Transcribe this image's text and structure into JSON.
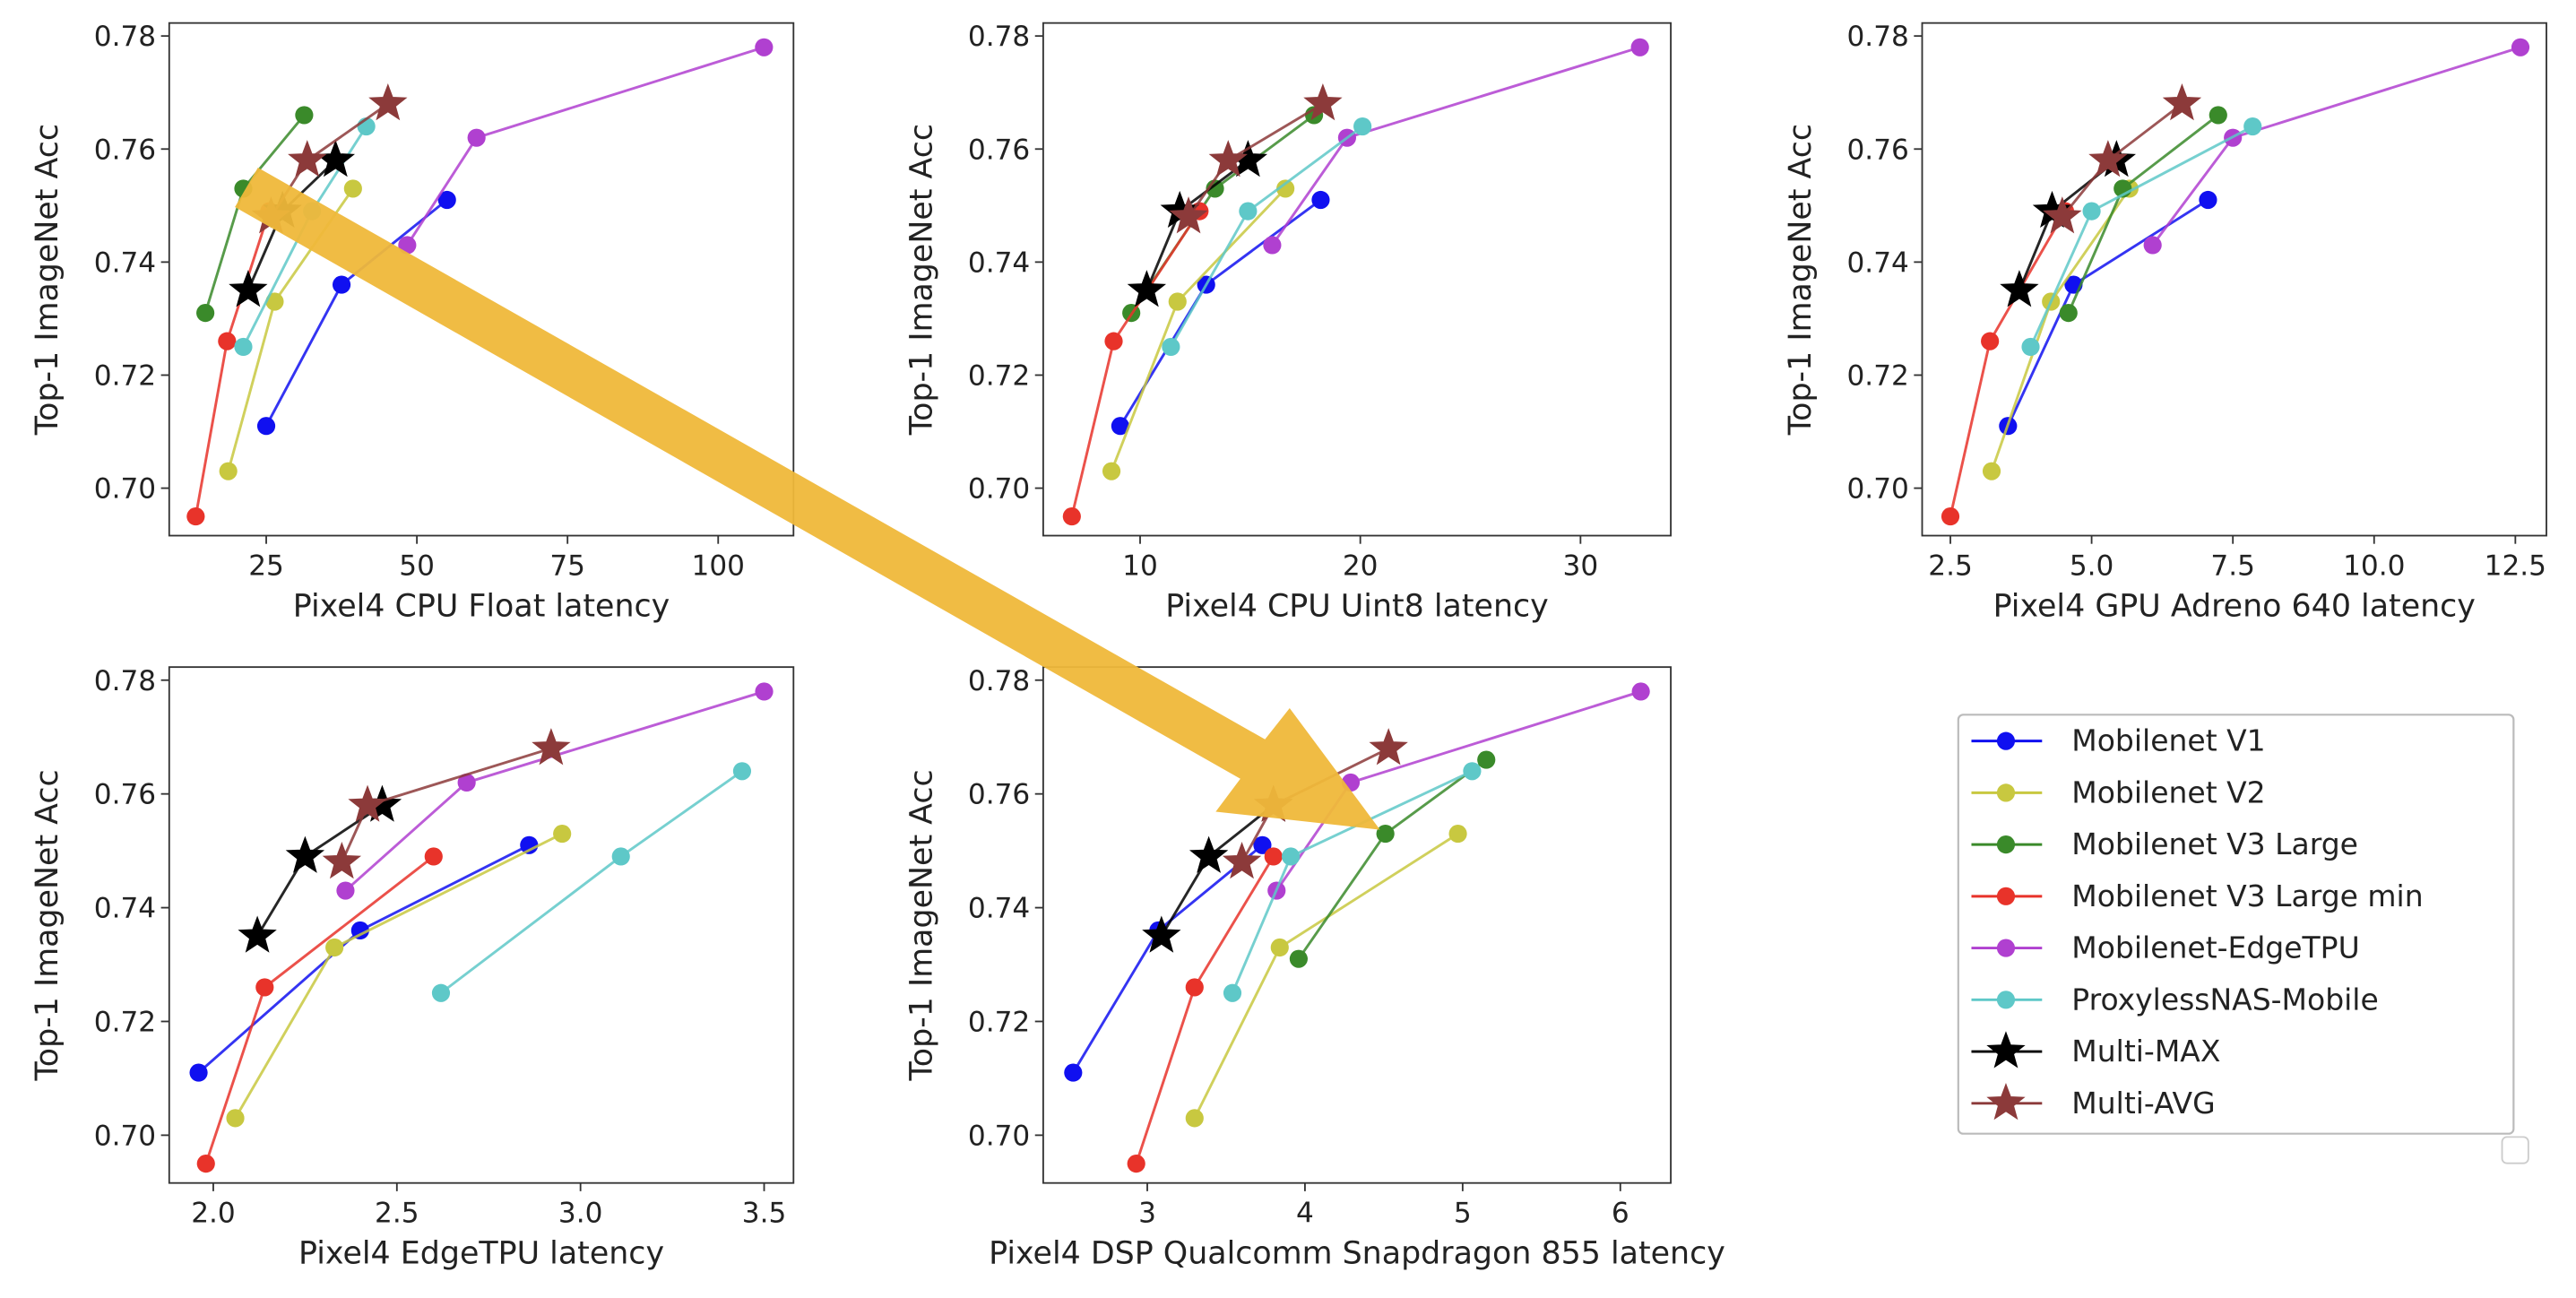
{
  "chart_data": [
    {
      "type": "line",
      "xlabel": "Pixel4 CPU Float latency",
      "ylabel": "Top-1 ImageNet Acc",
      "xlim": [
        8.9,
        112.5
      ],
      "ylim": [
        0.6916,
        0.7823
      ],
      "xticks": [
        25,
        50,
        75,
        100
      ],
      "yticks": [
        {
          "value": 0.7,
          "label": "0.70"
        },
        {
          "value": 0.72,
          "label": "0.72"
        },
        {
          "value": 0.74,
          "label": "0.74"
        },
        {
          "value": 0.76,
          "label": "0.76"
        },
        {
          "value": 0.78,
          "label": "0.78"
        }
      ],
      "series": [
        {
          "name": "Mobilenet V1",
          "color": "#1010f0",
          "marker": "o",
          "x": [
            25,
            37.5,
            55
          ],
          "values": [
            0.711,
            0.736,
            0.751
          ]
        },
        {
          "name": "Mobilenet V2",
          "color": "#c8c840",
          "marker": "o",
          "x": [
            18.7,
            26.4,
            39.4
          ],
          "values": [
            0.703,
            0.733,
            0.753
          ]
        },
        {
          "name": "Mobilenet V3 Large",
          "color": "#3a8a2a",
          "marker": "o",
          "x": [
            14.9,
            21.2,
            31.3
          ],
          "values": [
            0.731,
            0.753,
            0.766
          ]
        },
        {
          "name": "Mobilenet V3 Large min",
          "color": "#e8332a",
          "marker": "o",
          "x": [
            13.3,
            18.5,
            25.5
          ],
          "values": [
            0.695,
            0.726,
            0.749
          ]
        },
        {
          "name": "Mobilenet-EdgeTPU",
          "color": "#b040d0",
          "marker": "o",
          "x": [
            48.4,
            59.9,
            107.6
          ],
          "values": [
            0.743,
            0.762,
            0.778
          ]
        },
        {
          "name": "ProxylessNAS-Mobile",
          "color": "#5ec8c8",
          "marker": "o",
          "x": [
            21.2,
            32.6,
            41.6
          ],
          "values": [
            0.725,
            0.749,
            0.764
          ]
        },
        {
          "name": "Multi-MAX",
          "color": "#000000",
          "marker": "*",
          "x": [
            22,
            27.7,
            36.5
          ],
          "values": [
            0.735,
            0.749,
            0.758
          ]
        },
        {
          "name": "Multi-AVG",
          "color": "#8c3a3a",
          "marker": "*",
          "x": [
            25.8,
            31.8,
            45.2
          ],
          "values": [
            0.748,
            0.758,
            0.768
          ]
        }
      ]
    },
    {
      "type": "line",
      "xlabel": "Pixel4 CPU Uint8 latency",
      "ylabel": "Top-1 ImageNet Acc",
      "xlim": [
        5.6,
        34.1
      ],
      "ylim": [
        0.6916,
        0.7823
      ],
      "xticks": [
        10,
        20,
        30
      ],
      "yticks": [
        {
          "value": 0.7,
          "label": "0.70"
        },
        {
          "value": 0.72,
          "label": "0.72"
        },
        {
          "value": 0.74,
          "label": "0.74"
        },
        {
          "value": 0.76,
          "label": "0.76"
        },
        {
          "value": 0.78,
          "label": "0.78"
        }
      ],
      "series": [
        {
          "name": "Mobilenet V1",
          "color": "#1010f0",
          "marker": "o",
          "x": [
            9.1,
            13.0,
            18.2
          ],
          "values": [
            0.711,
            0.736,
            0.751
          ]
        },
        {
          "name": "Mobilenet V2",
          "color": "#c8c840",
          "marker": "o",
          "x": [
            8.7,
            11.7,
            16.6
          ],
          "values": [
            0.703,
            0.733,
            0.753
          ]
        },
        {
          "name": "Mobilenet V3 Large",
          "color": "#3a8a2a",
          "marker": "o",
          "x": [
            9.6,
            13.4,
            17.9
          ],
          "values": [
            0.731,
            0.753,
            0.766
          ]
        },
        {
          "name": "Mobilenet V3 Large min",
          "color": "#e8332a",
          "marker": "o",
          "x": [
            6.9,
            8.8,
            12.7
          ],
          "values": [
            0.695,
            0.726,
            0.749
          ]
        },
        {
          "name": "Mobilenet-EdgeTPU",
          "color": "#b040d0",
          "marker": "o",
          "x": [
            16.0,
            19.4,
            32.7
          ],
          "values": [
            0.743,
            0.762,
            0.778
          ]
        },
        {
          "name": "ProxylessNAS-Mobile",
          "color": "#5ec8c8",
          "marker": "o",
          "x": [
            11.4,
            14.9,
            20.1
          ],
          "values": [
            0.725,
            0.749,
            0.764
          ]
        },
        {
          "name": "Multi-MAX",
          "color": "#000000",
          "marker": "*",
          "x": [
            10.3,
            11.8,
            14.9
          ],
          "values": [
            0.735,
            0.749,
            0.758
          ]
        },
        {
          "name": "Multi-AVG",
          "color": "#8c3a3a",
          "marker": "*",
          "x": [
            12.2,
            14.0,
            18.3
          ],
          "values": [
            0.748,
            0.758,
            0.768
          ]
        }
      ]
    },
    {
      "type": "line",
      "xlabel": "Pixel4 GPU Adreno 640 latency",
      "ylabel": "Top-1 ImageNet Acc",
      "xlim": [
        2.0,
        13.05
      ],
      "ylim": [
        0.6916,
        0.7823
      ],
      "xticks": [
        2.5,
        {
          "value": 5,
          "label": "5.0"
        },
        7.5,
        {
          "value": 10,
          "label": "10.0"
        },
        12.5
      ],
      "yticks": [
        {
          "value": 0.7,
          "label": "0.70"
        },
        {
          "value": 0.72,
          "label": "0.72"
        },
        {
          "value": 0.74,
          "label": "0.74"
        },
        {
          "value": 0.76,
          "label": "0.76"
        },
        {
          "value": 0.78,
          "label": "0.78"
        }
      ],
      "series": [
        {
          "name": "Mobilenet V1",
          "color": "#1010f0",
          "marker": "o",
          "x": [
            3.52,
            4.68,
            7.06
          ],
          "values": [
            0.711,
            0.736,
            0.751
          ]
        },
        {
          "name": "Mobilenet V2",
          "color": "#c8c840",
          "marker": "o",
          "x": [
            3.23,
            4.28,
            5.67
          ],
          "values": [
            0.703,
            0.733,
            0.753
          ]
        },
        {
          "name": "Mobilenet V3 Large",
          "color": "#3a8a2a",
          "marker": "o",
          "x": [
            4.59,
            5.55,
            7.24
          ],
          "values": [
            0.731,
            0.753,
            0.766
          ]
        },
        {
          "name": "Mobilenet V3 Large min",
          "color": "#e8332a",
          "marker": "o",
          "x": [
            2.5,
            3.2,
            4.53
          ],
          "values": [
            0.695,
            0.726,
            0.749
          ]
        },
        {
          "name": "Mobilenet-EdgeTPU",
          "color": "#b040d0",
          "marker": "o",
          "x": [
            6.08,
            7.5,
            12.59
          ],
          "values": [
            0.743,
            0.762,
            0.778
          ]
        },
        {
          "name": "ProxylessNAS-Mobile",
          "color": "#5ec8c8",
          "marker": "o",
          "x": [
            3.92,
            5.0,
            7.85
          ],
          "values": [
            0.725,
            0.749,
            0.764
          ]
        },
        {
          "name": "Multi-MAX",
          "color": "#000000",
          "marker": "*",
          "x": [
            3.72,
            4.3,
            5.44
          ],
          "values": [
            0.735,
            0.749,
            0.758
          ]
        },
        {
          "name": "Multi-AVG",
          "color": "#8c3a3a",
          "marker": "*",
          "x": [
            4.48,
            5.29,
            6.6
          ],
          "values": [
            0.748,
            0.758,
            0.768
          ]
        }
      ]
    },
    {
      "type": "line",
      "xlabel": "Pixel4 EdgeTPU latency",
      "ylabel": "Top-1 ImageNet Acc",
      "xlim": [
        1.88,
        3.58
      ],
      "ylim": [
        0.6916,
        0.7823
      ],
      "xticks": [
        {
          "value": 2,
          "label": "2.0"
        },
        2.5,
        {
          "value": 3,
          "label": "3.0"
        },
        3.5
      ],
      "yticks": [
        {
          "value": 0.7,
          "label": "0.70"
        },
        {
          "value": 0.72,
          "label": "0.72"
        },
        {
          "value": 0.74,
          "label": "0.74"
        },
        {
          "value": 0.76,
          "label": "0.76"
        },
        {
          "value": 0.78,
          "label": "0.78"
        }
      ],
      "series": [
        {
          "name": "Mobilenet V1",
          "color": "#1010f0",
          "marker": "o",
          "x": [
            1.96,
            2.4,
            2.86
          ],
          "values": [
            0.711,
            0.736,
            0.751
          ]
        },
        {
          "name": "Mobilenet V2",
          "color": "#c8c840",
          "marker": "o",
          "x": [
            2.06,
            2.33,
            2.95
          ],
          "values": [
            0.703,
            0.733,
            0.753
          ]
        },
        {
          "name": "Mobilenet V3 Large min",
          "color": "#e8332a",
          "marker": "o",
          "x": [
            1.98,
            2.14,
            2.6
          ],
          "values": [
            0.695,
            0.726,
            0.749
          ]
        },
        {
          "name": "Mobilenet-EdgeTPU",
          "color": "#b040d0",
          "marker": "o",
          "x": [
            2.36,
            2.69,
            3.5
          ],
          "values": [
            0.743,
            0.762,
            0.778
          ]
        },
        {
          "name": "ProxylessNAS-Mobile",
          "color": "#5ec8c8",
          "marker": "o",
          "x": [
            2.62,
            3.11,
            3.44
          ],
          "values": [
            0.725,
            0.749,
            0.764
          ]
        },
        {
          "name": "Multi-MAX",
          "color": "#000000",
          "marker": "*",
          "x": [
            2.12,
            2.25,
            2.46
          ],
          "values": [
            0.735,
            0.749,
            0.758
          ]
        },
        {
          "name": "Multi-AVG",
          "color": "#8c3a3a",
          "marker": "*",
          "x": [
            2.35,
            2.42,
            2.92
          ],
          "values": [
            0.748,
            0.758,
            0.768
          ]
        }
      ]
    },
    {
      "type": "line",
      "xlabel": "Pixel4 DSP Qualcomm Snapdragon 855 latency",
      "ylabel": "Top-1 ImageNet Acc",
      "xlim": [
        2.34,
        6.32
      ],
      "ylim": [
        0.6916,
        0.7823
      ],
      "xticks": [
        3,
        4,
        5,
        6
      ],
      "yticks": [
        {
          "value": 0.7,
          "label": "0.70"
        },
        {
          "value": 0.72,
          "label": "0.72"
        },
        {
          "value": 0.74,
          "label": "0.74"
        },
        {
          "value": 0.76,
          "label": "0.76"
        },
        {
          "value": 0.78,
          "label": "0.78"
        }
      ],
      "series": [
        {
          "name": "Mobilenet V1",
          "color": "#1010f0",
          "marker": "o",
          "x": [
            2.53,
            3.07,
            3.73
          ],
          "values": [
            0.711,
            0.736,
            0.751
          ]
        },
        {
          "name": "Mobilenet V2",
          "color": "#c8c840",
          "marker": "o",
          "x": [
            3.3,
            3.84,
            4.97
          ],
          "values": [
            0.703,
            0.733,
            0.753
          ]
        },
        {
          "name": "Mobilenet V3 Large",
          "color": "#3a8a2a",
          "marker": "o",
          "x": [
            3.96,
            4.51,
            5.15
          ],
          "values": [
            0.731,
            0.753,
            0.766
          ]
        },
        {
          "name": "Mobilenet V3 Large min",
          "color": "#e8332a",
          "marker": "o",
          "x": [
            2.93,
            3.3,
            3.8
          ],
          "values": [
            0.695,
            0.726,
            0.749
          ]
        },
        {
          "name": "Mobilenet-EdgeTPU",
          "color": "#b040d0",
          "marker": "o",
          "x": [
            3.82,
            4.29,
            6.13
          ],
          "values": [
            0.743,
            0.762,
            0.778
          ]
        },
        {
          "name": "ProxylessNAS-Mobile",
          "color": "#5ec8c8",
          "marker": "o",
          "x": [
            3.54,
            3.91,
            5.06
          ],
          "values": [
            0.725,
            0.749,
            0.764
          ]
        },
        {
          "name": "Multi-MAX",
          "color": "#000000",
          "marker": "*",
          "x": [
            3.09,
            3.39,
            3.8
          ],
          "values": [
            0.735,
            0.749,
            0.758
          ]
        },
        {
          "name": "Multi-AVG",
          "color": "#8c3a3a",
          "marker": "*",
          "x": [
            3.6,
            3.8,
            4.53
          ],
          "values": [
            0.748,
            0.758,
            0.768
          ]
        }
      ]
    }
  ]
}
